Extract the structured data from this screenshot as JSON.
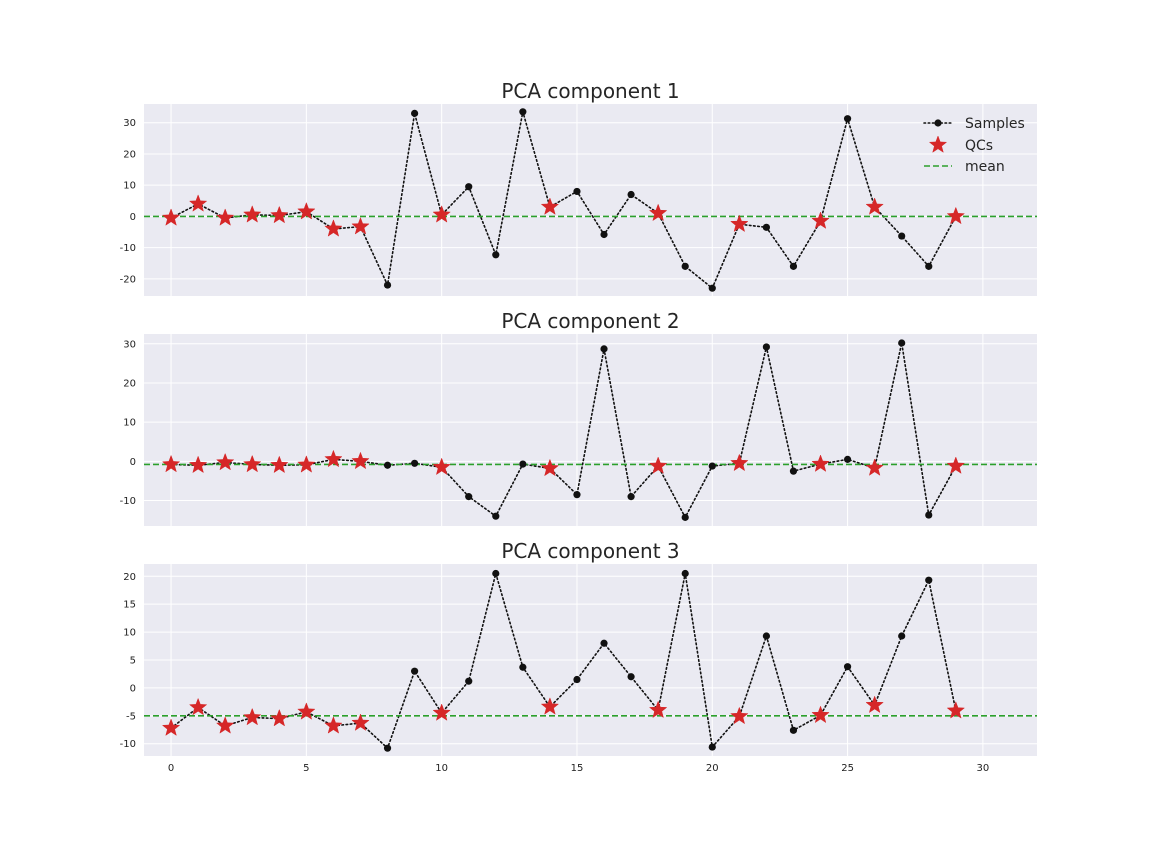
{
  "chart_data": [
    {
      "type": "line",
      "title": "PCA component 1",
      "xlim": [
        -1,
        32
      ],
      "ylim": [
        -25.5,
        36
      ],
      "xticks": [
        0,
        5,
        10,
        15,
        20,
        25,
        30
      ],
      "yticks": [
        -20,
        -10,
        0,
        10,
        20,
        30
      ],
      "grid": true,
      "legend": {
        "placement": "top-right",
        "entries": [
          "Samples",
          "QCs",
          "mean"
        ]
      },
      "series": [
        {
          "name": "Samples",
          "style": "dotted line with circle markers",
          "color": "#111111",
          "x": [
            0,
            1,
            2,
            3,
            4,
            5,
            6,
            7,
            8,
            9,
            10,
            11,
            12,
            13,
            14,
            15,
            16,
            17,
            18,
            19,
            20,
            21,
            22,
            23,
            24,
            25,
            26,
            27,
            28,
            29
          ],
          "y": [
            -0.5,
            4,
            -0.5,
            0.5,
            0.3,
            1.5,
            -4,
            -3.3,
            -22,
            33,
            0.5,
            9.5,
            -12.3,
            33.5,
            3,
            8,
            -5.8,
            7,
            1,
            -16,
            -23,
            -2.5,
            -3.5,
            -16,
            -1.5,
            31.3,
            3,
            -6.3,
            -16,
            0
          ]
        },
        {
          "name": "QCs",
          "style": "star markers",
          "color": "#d62728",
          "x": [
            0,
            1,
            2,
            3,
            4,
            5,
            6,
            7,
            10,
            14,
            18,
            21,
            24,
            26,
            29
          ],
          "y": [
            -0.5,
            4,
            -0.5,
            0.5,
            0.3,
            1.5,
            -4,
            -3.3,
            0.5,
            3,
            1,
            -2.5,
            -1.5,
            3,
            0
          ]
        },
        {
          "name": "mean",
          "style": "dashed horizontal line",
          "color": "#2ca02c",
          "y": 0
        }
      ]
    },
    {
      "type": "line",
      "title": "PCA component 2",
      "xlim": [
        -1,
        32
      ],
      "ylim": [
        -16.5,
        32.5
      ],
      "xticks": [
        0,
        5,
        10,
        15,
        20,
        25,
        30
      ],
      "yticks": [
        -10,
        0,
        10,
        20,
        30
      ],
      "grid": true,
      "series": [
        {
          "name": "Samples",
          "style": "dotted line with circle markers",
          "color": "#111111",
          "x": [
            0,
            1,
            2,
            3,
            4,
            5,
            6,
            7,
            8,
            9,
            10,
            11,
            12,
            13,
            14,
            15,
            16,
            17,
            18,
            19,
            20,
            21,
            22,
            23,
            24,
            25,
            26,
            27,
            28,
            29
          ],
          "y": [
            -0.8,
            -1,
            -0.3,
            -0.8,
            -1,
            -0.9,
            0.5,
            0,
            -1,
            -0.5,
            -1.5,
            -9,
            -14,
            -0.7,
            -1.8,
            -8.5,
            28.7,
            -9,
            -1.2,
            -14.3,
            -1.2,
            -0.5,
            29.2,
            -2.5,
            -0.7,
            0.5,
            -1.7,
            30.2,
            -13.7,
            -1.2
          ]
        },
        {
          "name": "QCs",
          "style": "star markers",
          "color": "#d62728",
          "x": [
            0,
            1,
            2,
            3,
            4,
            5,
            6,
            7,
            10,
            14,
            18,
            21,
            24,
            26,
            29
          ],
          "y": [
            -0.8,
            -1,
            -0.3,
            -0.8,
            -1,
            -0.9,
            0.5,
            0,
            -1.5,
            -1.8,
            -1.2,
            -0.5,
            -0.7,
            -1.7,
            -1.2
          ]
        },
        {
          "name": "mean",
          "style": "dashed horizontal line",
          "color": "#2ca02c",
          "y": -0.8
        }
      ]
    },
    {
      "type": "line",
      "title": "PCA component 3",
      "xlim": [
        -1,
        32
      ],
      "ylim": [
        -12.2,
        22.2
      ],
      "xticks": [
        0,
        5,
        10,
        15,
        20,
        25,
        30
      ],
      "xticklabels": [
        "0",
        "5",
        "10",
        "15",
        "20",
        "25",
        "30"
      ],
      "yticks": [
        -10,
        -5,
        0,
        5,
        10,
        15,
        20
      ],
      "grid": true,
      "series": [
        {
          "name": "Samples",
          "style": "dotted line with circle markers",
          "color": "#111111",
          "x": [
            0,
            1,
            2,
            3,
            4,
            5,
            6,
            7,
            8,
            9,
            10,
            11,
            12,
            13,
            14,
            15,
            16,
            17,
            18,
            19,
            20,
            21,
            22,
            23,
            24,
            25,
            26,
            27,
            28,
            29
          ],
          "y": [
            -7.2,
            -3.5,
            -6.8,
            -5.3,
            -5.5,
            -4.3,
            -6.8,
            -6.3,
            -10.8,
            3,
            -4.5,
            1.2,
            20.5,
            3.7,
            -3.4,
            1.5,
            8,
            2,
            -4,
            20.5,
            -10.6,
            -5.1,
            9.3,
            -7.6,
            -4.9,
            3.8,
            -3.1,
            9.3,
            19.3,
            -4.1
          ]
        },
        {
          "name": "QCs",
          "style": "star markers",
          "color": "#d62728",
          "x": [
            0,
            1,
            2,
            3,
            4,
            5,
            6,
            7,
            10,
            14,
            18,
            21,
            24,
            26,
            29
          ],
          "y": [
            -7.2,
            -3.5,
            -6.8,
            -5.3,
            -5.5,
            -4.3,
            -6.8,
            -6.3,
            -4.5,
            -3.4,
            -4,
            -5.1,
            -4.9,
            -3.1,
            -4.1
          ]
        },
        {
          "name": "mean",
          "style": "dashed horizontal line",
          "color": "#2ca02c",
          "y": -5
        }
      ]
    }
  ]
}
